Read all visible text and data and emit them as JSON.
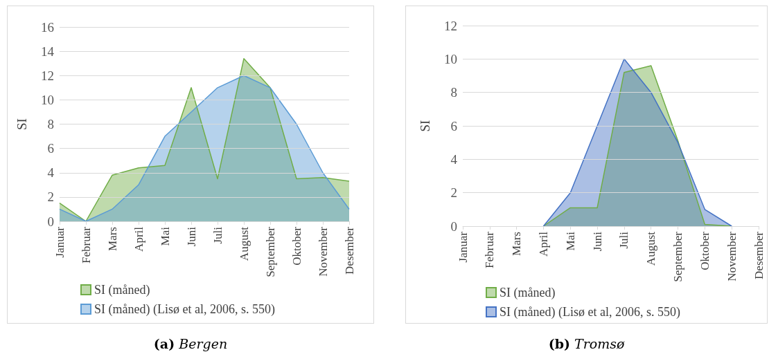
{
  "chart_data": [
    {
      "type": "area",
      "ylabel": "SI",
      "annotations": [
        "(a) Bergen"
      ],
      "categories": [
        "Januar",
        "Februar",
        "Mars",
        "April",
        "Mai",
        "Juni",
        "Juli",
        "August",
        "September",
        "Oktober",
        "November",
        "Desember"
      ],
      "series": [
        {
          "name": "SI (måned)",
          "color": "#70ad47",
          "values": [
            1.5,
            0,
            3.8,
            4.4,
            4.6,
            11.0,
            3.5,
            13.4,
            11.0,
            3.5,
            3.6,
            3.3
          ]
        },
        {
          "name": "SI (måned) (Lisø et al, 2006, s. 550)",
          "color": "#5b9bd5",
          "values": [
            1,
            0,
            1,
            3,
            7,
            9,
            11,
            12,
            11,
            8,
            4,
            1
          ]
        }
      ],
      "ylim": [
        0,
        16
      ],
      "yticks": [
        0,
        2,
        4,
        6,
        8,
        10,
        12,
        14,
        16
      ],
      "grid": "y",
      "legend": "bottom"
    },
    {
      "type": "area",
      "ylabel": "SI",
      "annotations": [
        "(b) Tromsø"
      ],
      "categories": [
        "Januar",
        "Februar",
        "Mars",
        "April",
        "Mai",
        "Juni",
        "Juli",
        "August",
        "September",
        "Oktober",
        "November",
        "Desember"
      ],
      "series": [
        {
          "name": "SI (måned)",
          "color": "#70ad47",
          "values": [
            null,
            null,
            null,
            0,
            1.1,
            1.1,
            9.2,
            9.6,
            5.1,
            0.1,
            0,
            null
          ]
        },
        {
          "name": "SI (måned) (Lisø et al, 2006, s. 550)",
          "color": "#4472c4",
          "values": [
            null,
            null,
            null,
            0,
            2,
            6,
            10,
            8,
            5,
            1,
            0,
            null
          ]
        }
      ],
      "ylim": [
        0,
        12
      ],
      "yticks": [
        0,
        2,
        4,
        6,
        8,
        10,
        12
      ],
      "grid": "y",
      "legend": "bottom"
    }
  ]
}
